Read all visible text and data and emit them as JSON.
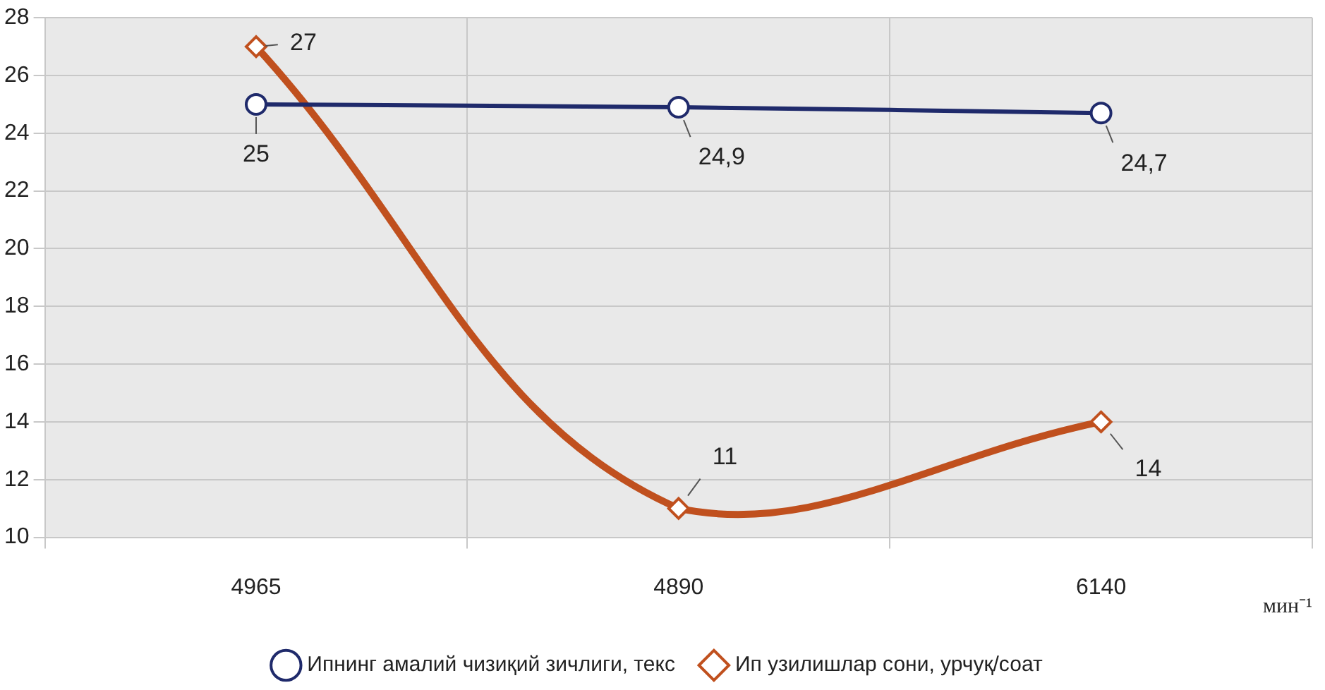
{
  "chart_data": {
    "type": "line",
    "categories": [
      "4965",
      "4890",
      "6140"
    ],
    "xlabel": "мин⁻¹",
    "series": [
      {
        "name": "Ипнинг амалий чизиқий зичлиги, текс",
        "color": "#1f2a6b",
        "values": [
          25,
          24.9,
          24.7
        ],
        "marker": "circle",
        "value_labels": [
          "25",
          "24,9",
          "24,7"
        ]
      },
      {
        "name": "Ип узилишлар сони, урчуқ/соат",
        "color": "#c0501e",
        "values": [
          27,
          11,
          14
        ],
        "marker": "diamond",
        "value_labels": [
          "27",
          "11",
          "14"
        ]
      }
    ],
    "ylim": [
      10,
      28
    ],
    "yticks": [
      10,
      12,
      14,
      16,
      18,
      20,
      22,
      24,
      26,
      28
    ],
    "grid": true,
    "legend": "bottom",
    "line_style": "solid"
  }
}
